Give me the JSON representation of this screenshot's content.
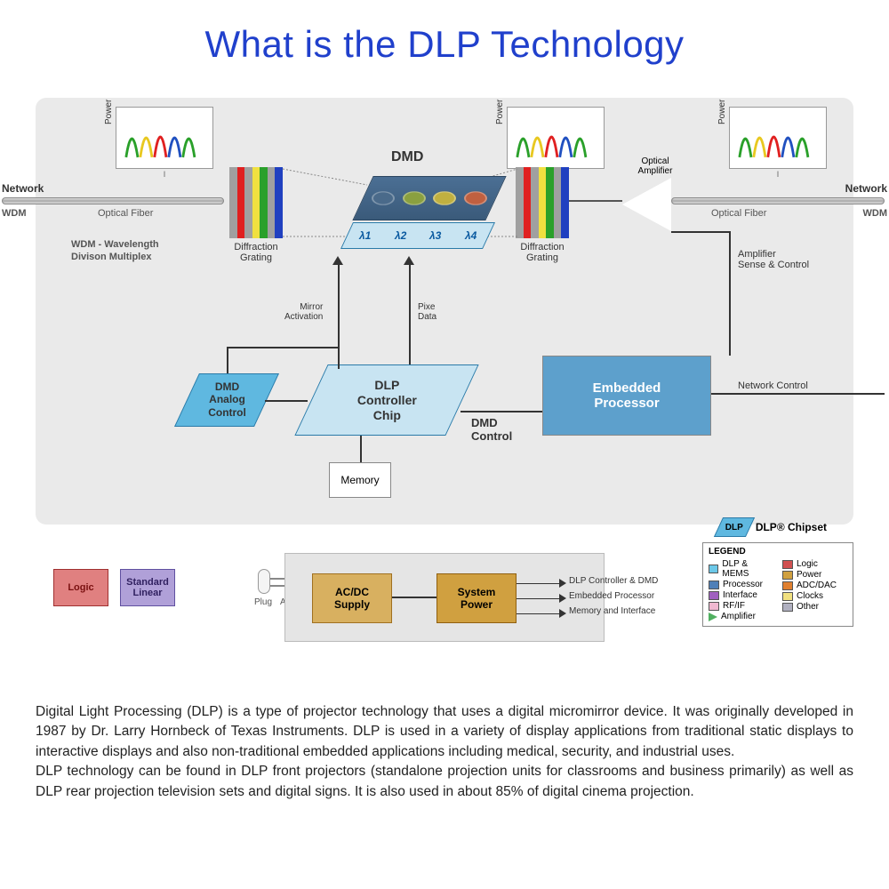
{
  "title": {
    "text": "What is the DLP Technology",
    "color": "#2040cc"
  },
  "diagram": {
    "background": "#eaeaea",
    "dmd_label": "DMD",
    "spectrum_colors": [
      "#2aa02a",
      "#e8c820",
      "#e02020",
      "#2050c0"
    ],
    "grating": {
      "label": "Diffraction\nGrating",
      "colors": [
        "#a0a0a0",
        "#e02020",
        "#a0a0a0",
        "#f0e040",
        "#2aa02a",
        "#a0a0a0",
        "#2040c0"
      ]
    },
    "power_label": "Power",
    "tick_label": "I",
    "left_side": {
      "network": "Network",
      "wdm": "WDM",
      "fiber_label": "Optical Fiber",
      "wdm_expand": "WDM - Wavelength\nDivison Multiplex"
    },
    "right_side": {
      "network": "Network",
      "wdm": "WDM",
      "fiber_label": "Optical Fiber"
    },
    "dmd_strip": {
      "fill": "#5fb8e0",
      "border": "#2a7aa8",
      "lambdas": [
        "λ1",
        "λ2",
        "λ3",
        "λ4"
      ],
      "lens_colors": [
        "#4a6a8a",
        "#8aa040",
        "#c0b040",
        "#c06040"
      ]
    },
    "blocks": {
      "dmd_analog": {
        "label": "DMD\nAnalog\nControl",
        "fill": "#5fb8e0"
      },
      "dlp_controller": {
        "label": "DLP\nController\nChip",
        "fill": "#c8e4f2"
      },
      "memory": {
        "label": "Memory",
        "fill": "#ffffff"
      },
      "embedded": {
        "label": "Embedded\nProcessor",
        "fill": "#5da0cc"
      }
    },
    "arrows": {
      "mirror": "Mirror\nActivation",
      "pixe": "Pixe\nData",
      "dmd_control": "DMD\nControl",
      "network_control": "Network Control",
      "amp_sense": "Amplifier\nSense & Control"
    },
    "amplifier": {
      "label": "Optical\nAmplifier"
    }
  },
  "lower": {
    "logic": {
      "label": "Logic",
      "fill": "#e08080",
      "border": "#a03030"
    },
    "stdlinear": {
      "label": "Standard\nLinear",
      "fill": "#b0a0d8",
      "border": "#6050a0"
    },
    "plug": "Plug",
    "acline": "AC Line",
    "acdc": {
      "label": "AC/DC\nSupply",
      "fill": "#d8b060",
      "border": "#a07020"
    },
    "syspower": {
      "label": "System\nPower",
      "fill": "#d0a040",
      "border": "#906010"
    },
    "outputs": [
      "DLP Controller & DMD",
      "Embedded Processor",
      "Memory and Interface"
    ],
    "chipset_label": "DLP® Chipset",
    "chipset_short": "DLP",
    "legend": {
      "title": "LEGEND",
      "left": [
        {
          "label": "DLP & MEMS",
          "color": "#6cc8e8"
        },
        {
          "label": "Processor",
          "color": "#5080b8"
        },
        {
          "label": "Interface",
          "color": "#a060c0"
        },
        {
          "label": "RF/IF",
          "color": "#f0b8d0"
        },
        {
          "label": "Amplifier",
          "color": "#50b060",
          "triangle": true
        }
      ],
      "right": [
        {
          "label": "Logic",
          "color": "#d05050"
        },
        {
          "label": "Power",
          "color": "#d0a040"
        },
        {
          "label": "ADC/DAC",
          "color": "#e08030"
        },
        {
          "label": "Clocks",
          "color": "#f0e080"
        },
        {
          "label": "Other",
          "color": "#b0b0c0"
        }
      ]
    }
  },
  "description": {
    "p1": "Digital Light Processing (DLP) is a type of projector technology that uses a digital micromirror device. It was originally developed in 1987 by Dr. Larry Hornbeck of Texas Instruments. DLP is used in a variety of display applications from traditional static displays to interactive displays and also non-traditional embedded applications including medical, security, and industrial uses.",
    "p2": "DLP technology can be found in DLP front projectors (standalone projection units for classrooms and business primarily) as well as DLP rear projection television sets and digital signs. It is also used in about 85% of digital cinema projection."
  }
}
